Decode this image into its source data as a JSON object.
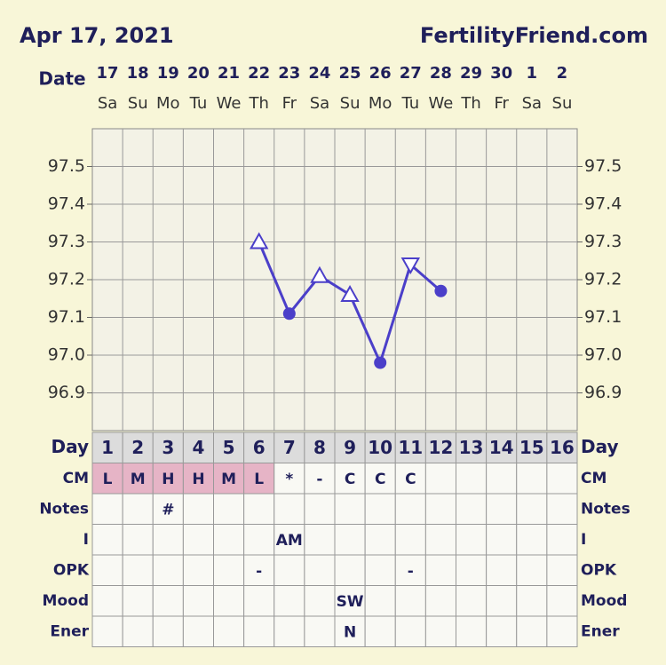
{
  "header": {
    "date": "Apr 17, 2021",
    "site": "FertilityFriend.com"
  },
  "chart_data": {
    "type": "line",
    "x_label": "Date",
    "x": [
      "17",
      "18",
      "19",
      "20",
      "21",
      "22",
      "23",
      "24",
      "25",
      "26",
      "27",
      "28",
      "29",
      "30",
      "1",
      "2"
    ],
    "weekdays": [
      "Sa",
      "Su",
      "Mo",
      "Tu",
      "We",
      "Th",
      "Fr",
      "Sa",
      "Su",
      "Mo",
      "Tu",
      "We",
      "Th",
      "Fr",
      "Sa",
      "Su"
    ],
    "series": [
      {
        "color": "#4b3fc9",
        "values": [
          null,
          null,
          null,
          null,
          null,
          97.3,
          97.11,
          97.21,
          97.16,
          96.98,
          97.24,
          97.17,
          null,
          null,
          null,
          null
        ],
        "markers": [
          null,
          null,
          null,
          null,
          null,
          "triangle-up",
          "circle",
          "triangle-up",
          "triangle-up",
          "circle",
          "triangle-down",
          "circle",
          null,
          null,
          null,
          null
        ]
      }
    ],
    "ylim": [
      96.8,
      97.6
    ],
    "yticks": [
      96.9,
      {
        "value": 97,
        "label": "97.0"
      },
      97.1,
      97.2,
      97.3,
      97.4,
      97.5
    ],
    "grid": true
  },
  "table": {
    "rows": [
      {
        "label": "Day",
        "cells": [
          1,
          2,
          3,
          4,
          5,
          6,
          7,
          8,
          9,
          10,
          11,
          12,
          13,
          14,
          15,
          16
        ]
      },
      {
        "label": "CM",
        "cells": [
          "L",
          "M",
          "H",
          "H",
          "M",
          "L",
          "*",
          "-",
          "C",
          "C",
          "C",
          null,
          null,
          null,
          null,
          null
        ]
      },
      {
        "label": "Notes",
        "cells": [
          null,
          null,
          "#",
          null,
          null,
          null,
          null,
          null,
          null,
          null,
          null,
          null,
          null,
          null,
          null,
          null
        ]
      },
      {
        "label": "I",
        "cells": [
          null,
          null,
          null,
          null,
          null,
          null,
          "AM",
          null,
          null,
          null,
          null,
          null,
          null,
          null,
          null,
          null
        ]
      },
      {
        "label": "OPK",
        "cells": [
          null,
          null,
          null,
          null,
          null,
          "-",
          null,
          null,
          null,
          null,
          "-",
          null,
          null,
          null,
          null,
          null
        ]
      },
      {
        "label": "Mood",
        "cells": [
          null,
          null,
          null,
          null,
          null,
          null,
          null,
          null,
          "SW",
          null,
          null,
          null,
          null,
          null,
          null,
          null
        ]
      },
      {
        "label": "Ener",
        "cells": [
          null,
          null,
          null,
          null,
          null,
          null,
          null,
          null,
          "N",
          null,
          null,
          null,
          null,
          null,
          null,
          null
        ]
      }
    ]
  }
}
